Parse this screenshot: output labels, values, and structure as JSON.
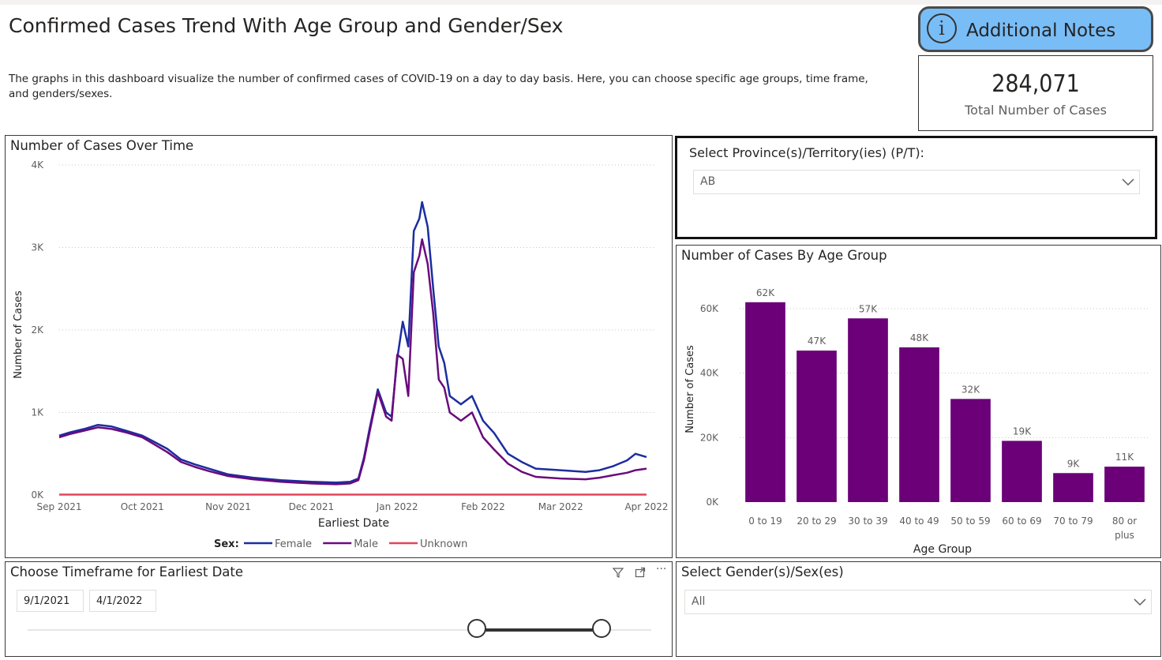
{
  "page": {
    "title": "Confirmed Cases Trend With Age Group and Gender/Sex",
    "description": "The graphs in this dashboard visualize the number of confirmed cases of COVID-19 on a day to day basis. Here, you can choose specific age groups, time frame, and genders/sexes."
  },
  "notes_button": {
    "label": "Additional Notes",
    "icon": "info-icon"
  },
  "kpi": {
    "value": "284,071",
    "caption": "Total Number of Cases"
  },
  "province_slicer": {
    "label": "Select Province(s)/Territory(ies) (P/T):",
    "selected": "AB"
  },
  "gender_slicer": {
    "label": "Select Gender(s)/Sex(es)",
    "selected": "All"
  },
  "timeframe": {
    "title": "Choose Timeframe for Earliest Date",
    "start": "9/1/2021",
    "end": "4/1/2022",
    "start_fraction": 0.72,
    "end_fraction": 0.92
  },
  "colors": {
    "female": "#1b2da0",
    "male": "#6b0a7c",
    "unknown": "#e0455a",
    "bar": "#6b0078",
    "notes_bg": "#79bdf7"
  },
  "chart_data": [
    {
      "type": "line",
      "title": "Number of Cases Over Time",
      "xlabel": "Earliest Date",
      "ylabel": "Number of Cases",
      "xticks": [
        "Sep 2021",
        "Oct 2021",
        "Nov 2021",
        "Dec 2021",
        "Jan 2022",
        "Feb 2022",
        "Mar 2022",
        "Apr 2022"
      ],
      "yticks": [
        "0K",
        "1K",
        "2K",
        "3K",
        "4K"
      ],
      "ylim": [
        0,
        4000
      ],
      "legend_title": "Sex:",
      "legend_position": "bottom",
      "x": [
        "2021-09-01",
        "2021-09-05",
        "2021-09-10",
        "2021-09-15",
        "2021-09-20",
        "2021-09-25",
        "2021-10-01",
        "2021-10-05",
        "2021-10-10",
        "2021-10-15",
        "2021-10-20",
        "2021-10-25",
        "2021-11-01",
        "2021-11-10",
        "2021-11-20",
        "2021-12-01",
        "2021-12-10",
        "2021-12-15",
        "2021-12-18",
        "2021-12-20",
        "2021-12-22",
        "2021-12-25",
        "2021-12-28",
        "2021-12-30",
        "2022-01-01",
        "2022-01-03",
        "2022-01-05",
        "2022-01-07",
        "2022-01-09",
        "2022-01-10",
        "2022-01-12",
        "2022-01-14",
        "2022-01-16",
        "2022-01-18",
        "2022-01-20",
        "2022-01-24",
        "2022-01-28",
        "2022-02-01",
        "2022-02-05",
        "2022-02-10",
        "2022-02-15",
        "2022-02-20",
        "2022-03-01",
        "2022-03-10",
        "2022-03-15",
        "2022-03-20",
        "2022-03-25",
        "2022-03-28",
        "2022-04-01"
      ],
      "series": [
        {
          "name": "Female",
          "values": [
            720,
            760,
            800,
            850,
            830,
            780,
            720,
            650,
            560,
            430,
            370,
            320,
            250,
            210,
            180,
            160,
            150,
            160,
            200,
            450,
            800,
            1280,
            1000,
            950,
            1650,
            2100,
            1800,
            3200,
            3350,
            3550,
            3250,
            2500,
            1800,
            1600,
            1200,
            1100,
            1200,
            900,
            750,
            500,
            400,
            320,
            300,
            280,
            300,
            350,
            420,
            500,
            460
          ]
        },
        {
          "name": "Male",
          "values": [
            700,
            740,
            780,
            820,
            800,
            760,
            700,
            620,
            520,
            400,
            340,
            290,
            230,
            190,
            160,
            140,
            130,
            140,
            180,
            420,
            760,
            1250,
            950,
            900,
            1700,
            1650,
            1200,
            2700,
            2900,
            3100,
            2800,
            2200,
            1400,
            1300,
            1000,
            900,
            1000,
            700,
            550,
            380,
            280,
            220,
            200,
            190,
            210,
            240,
            270,
            300,
            320
          ]
        },
        {
          "name": "Unknown",
          "values": [
            5,
            5,
            5,
            5,
            5,
            5,
            5,
            5,
            5,
            5,
            5,
            5,
            5,
            5,
            5,
            5,
            5,
            5,
            5,
            5,
            5,
            5,
            5,
            5,
            5,
            5,
            5,
            5,
            5,
            5,
            5,
            5,
            5,
            5,
            5,
            5,
            5,
            5,
            5,
            5,
            5,
            5,
            5,
            5,
            5,
            5,
            5,
            5,
            5
          ]
        }
      ]
    },
    {
      "type": "bar",
      "title": "Number of Cases By Age Group",
      "xlabel": "Age Group",
      "ylabel": "Number of Cases",
      "categories": [
        "0 to 19",
        "20 to 29",
        "30 to 39",
        "40 to 49",
        "50 to 59",
        "60 to 69",
        "70 to 79",
        "80 or plus"
      ],
      "values": [
        62000,
        47000,
        57000,
        48000,
        32000,
        19000,
        9000,
        11000
      ],
      "labels": [
        "62K",
        "47K",
        "57K",
        "48K",
        "32K",
        "19K",
        "9K",
        "11K"
      ],
      "yticks": [
        "0K",
        "20K",
        "40K",
        "60K"
      ],
      "ylim": [
        0,
        60000
      ]
    }
  ]
}
